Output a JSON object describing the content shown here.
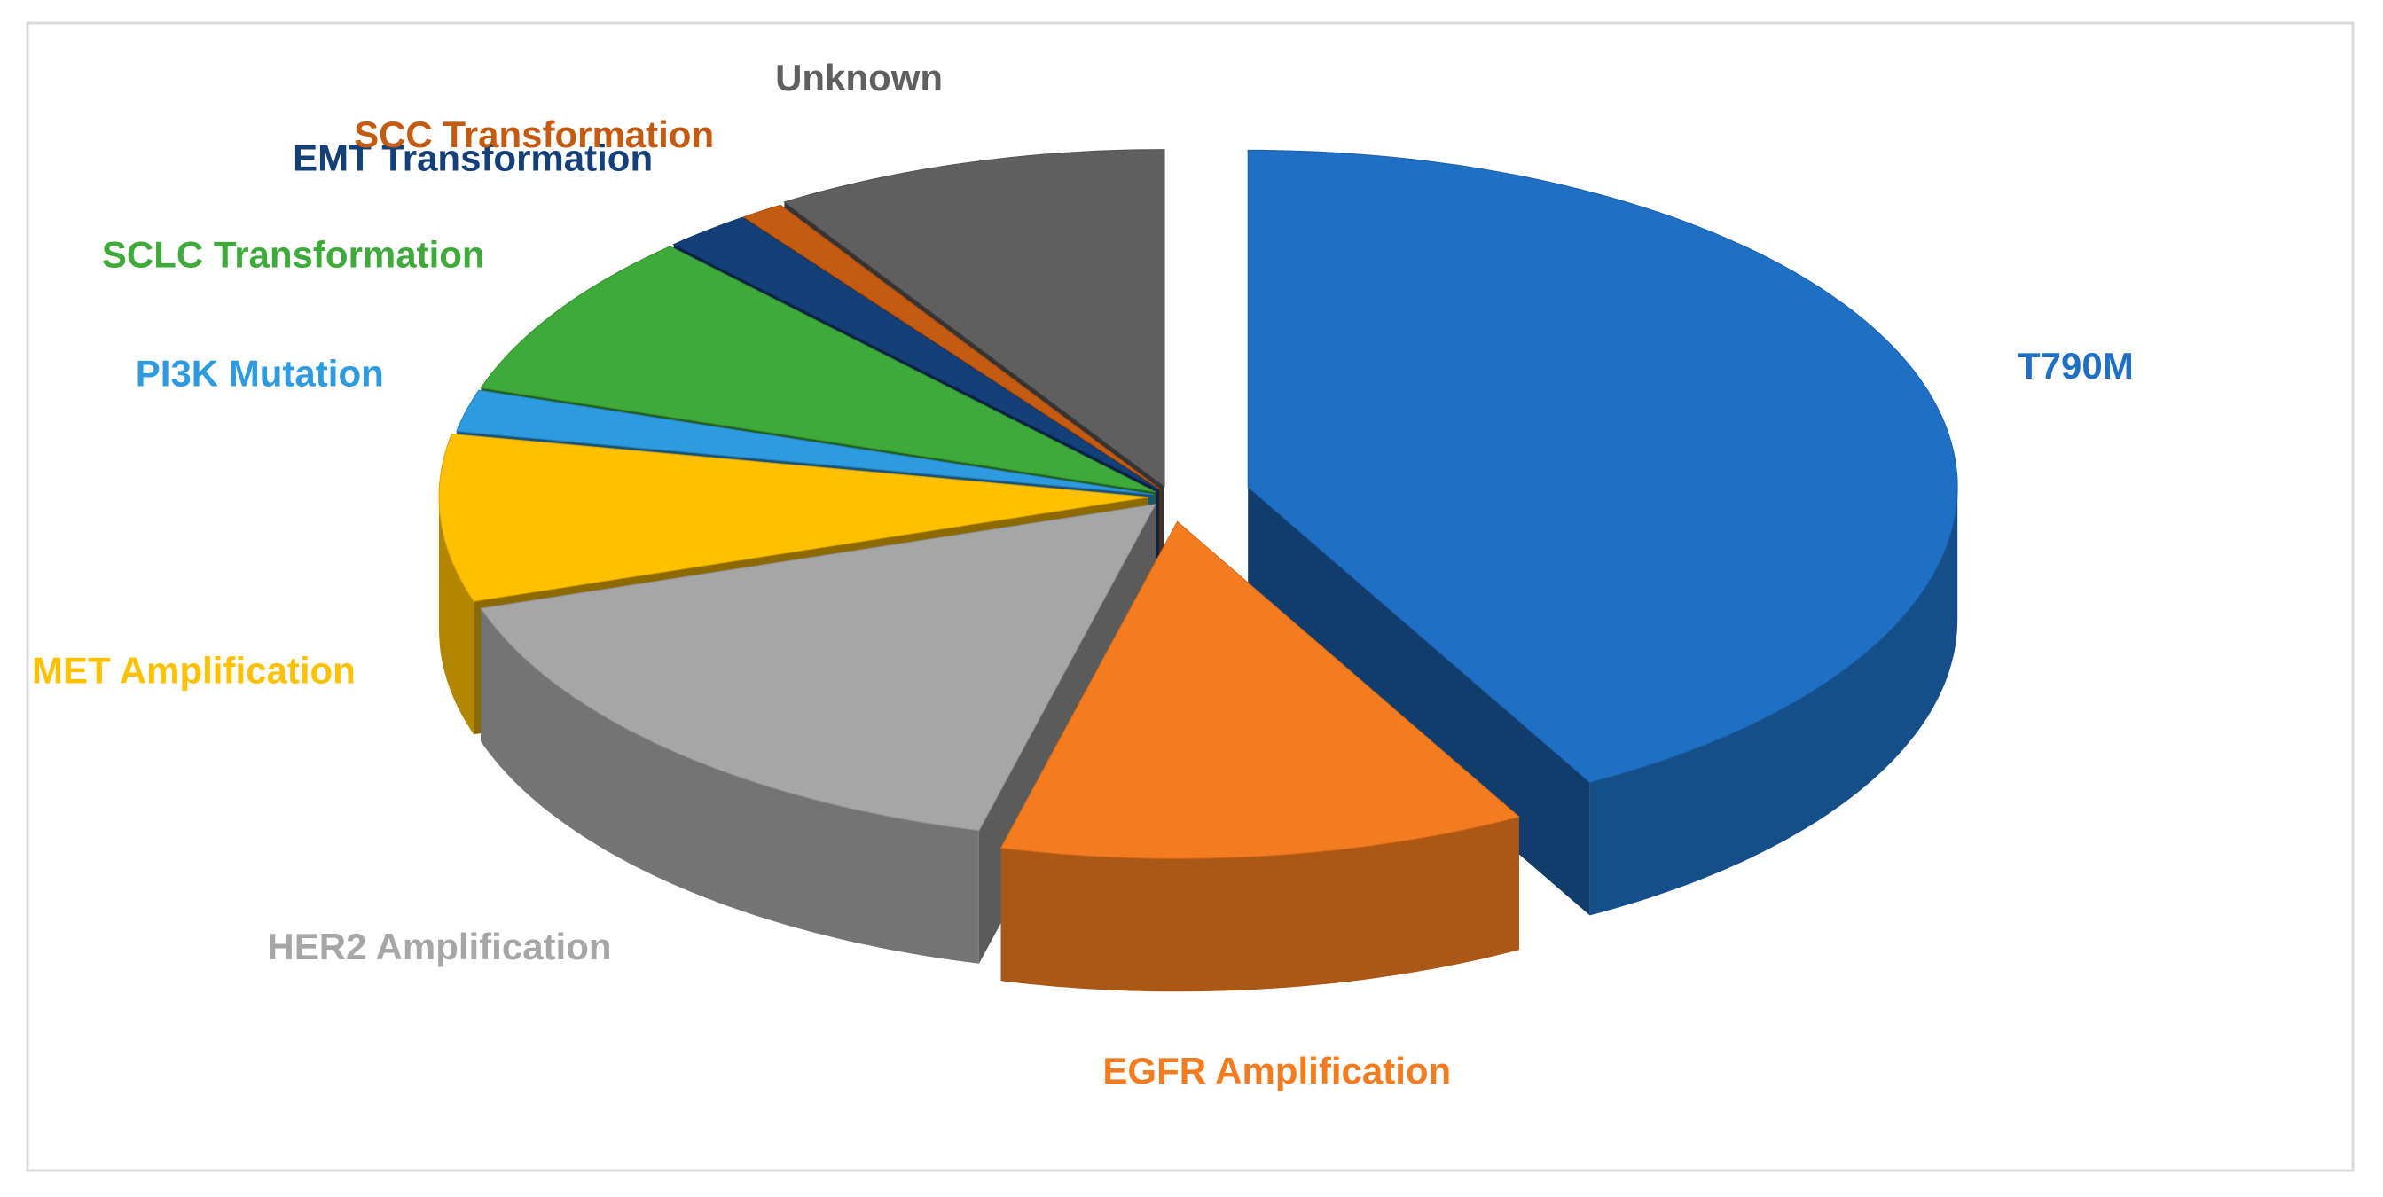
{
  "chart_data": {
    "type": "pie3d",
    "categories": [
      "T790M",
      "EGFR Amplification",
      "HER2 Amplification",
      "MET Amplification",
      "PI3K Mutation",
      "SCLC Transformation",
      "EMT Transformation",
      "SCC Transformation",
      "Unknown"
    ],
    "values": [
      42,
      12,
      16,
      8,
      2,
      8,
      2,
      1,
      9
    ],
    "colors": [
      "#1f6fc5",
      "#f47c20",
      "#a6a6a6",
      "#ffc000",
      "#2e9be0",
      "#3daa3a",
      "#14407a",
      "#c55a11",
      "#5f5f5f"
    ]
  }
}
